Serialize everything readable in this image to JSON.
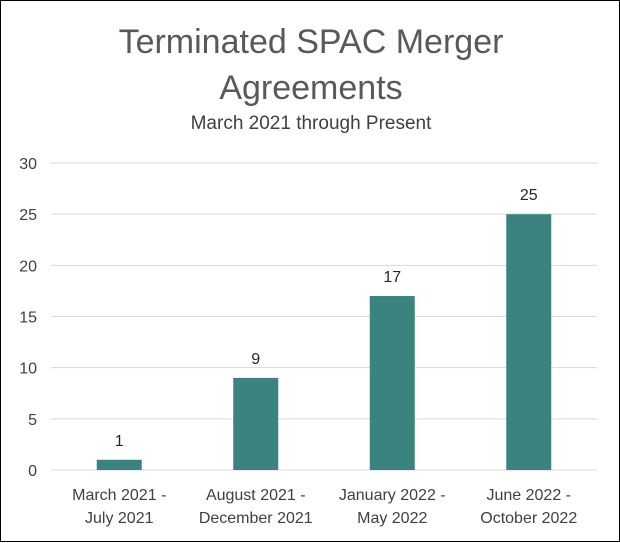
{
  "chart_data": {
    "type": "bar",
    "title_lines": [
      "Terminated SPAC Merger",
      "Agreements"
    ],
    "subtitle": "March 2021 through Present",
    "categories": [
      [
        "March 2021 -",
        "July 2021"
      ],
      [
        "August 2021 -",
        "December 2021"
      ],
      [
        "January 2022 -",
        "May 2022"
      ],
      [
        "June 2022 -",
        "October 2022"
      ]
    ],
    "values": [
      1,
      9,
      17,
      25
    ],
    "ylim": [
      0,
      30
    ],
    "yticks": [
      0,
      5,
      10,
      15,
      20,
      25,
      30
    ],
    "grid": true,
    "data_labels": true,
    "bar_color": "#3b837f",
    "gridline_color": "#d9d9d9"
  }
}
